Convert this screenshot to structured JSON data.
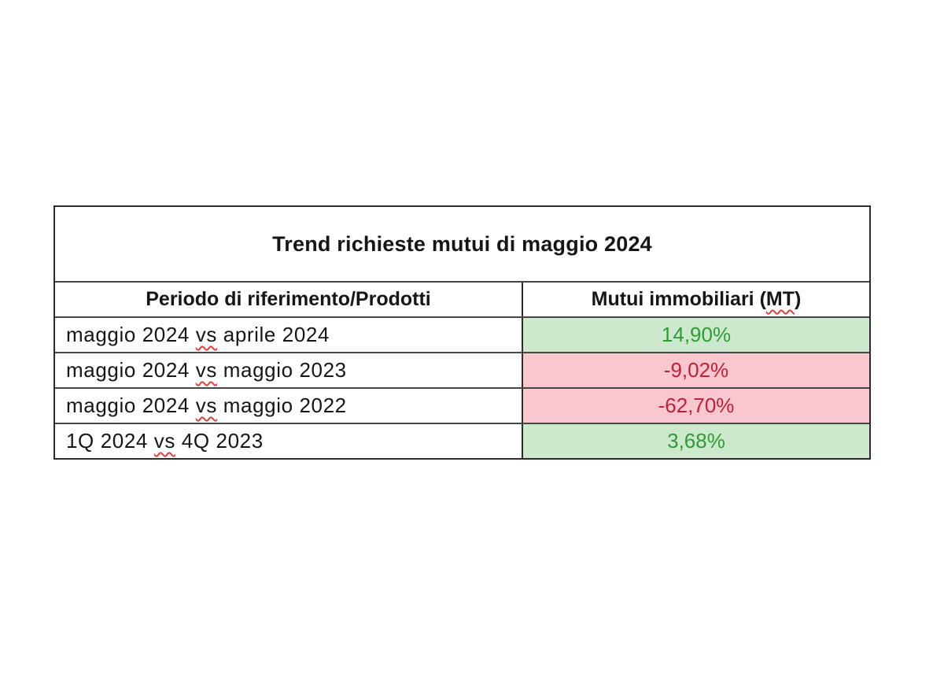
{
  "table": {
    "title": "Trend richieste mutui di maggio 2024",
    "header": {
      "period_label": "Periodo di riferimento/Prodotti",
      "product_label_prefix": "Mutui immobiliari (",
      "product_label_marked": "MT",
      "product_label_suffix": ")"
    },
    "rows": [
      {
        "period_before": "maggio 2024 ",
        "period_marked": "vs",
        "period_after": " aprile 2024",
        "value": "14,90%",
        "trend": "positive"
      },
      {
        "period_before": "maggio 2024 ",
        "period_marked": "vs",
        "period_after": " maggio 2023",
        "value": "-9,02%",
        "trend": "negative"
      },
      {
        "period_before": "maggio 2024 ",
        "period_marked": "vs",
        "period_after": " maggio 2022",
        "value": "-62,70%",
        "trend": "negative"
      },
      {
        "period_before": "1Q 2024 ",
        "period_marked": "vs",
        "period_after": " 4Q 2023",
        "value": "3,68%",
        "trend": "positive"
      }
    ],
    "colors": {
      "positive_bg": "#cde9cd",
      "positive_text": "#2e9b33",
      "negative_bg": "#f9c7cd",
      "negative_text": "#c2203a",
      "squiggle": "#e0433a",
      "border_outer": "#2b2b2b",
      "border_inner": "#454545"
    }
  },
  "chart_data": {
    "type": "table",
    "title": "Trend richieste mutui di maggio 2024",
    "columns": [
      "Periodo di riferimento/Prodotti",
      "Mutui immobiliari (MT)"
    ],
    "rows": [
      [
        "maggio 2024 vs aprile 2024",
        "14,90%"
      ],
      [
        "maggio 2024 vs maggio 2023",
        "-9,02%"
      ],
      [
        "maggio 2024 vs maggio 2022",
        "-62,70%"
      ],
      [
        "1Q 2024 vs 4Q 2023",
        "3,68%"
      ]
    ],
    "values_numeric_percent": [
      14.9,
      -9.02,
      -62.7,
      3.68
    ],
    "value_cell_trend": [
      "positive",
      "negative",
      "negative",
      "positive"
    ],
    "layout_hints": {
      "value_column_alignment": "center",
      "period_column_alignment": "left",
      "positive_color": "green",
      "negative_color": "red",
      "spellcheck_squiggles_under": [
        "vs",
        "MT"
      ]
    }
  }
}
